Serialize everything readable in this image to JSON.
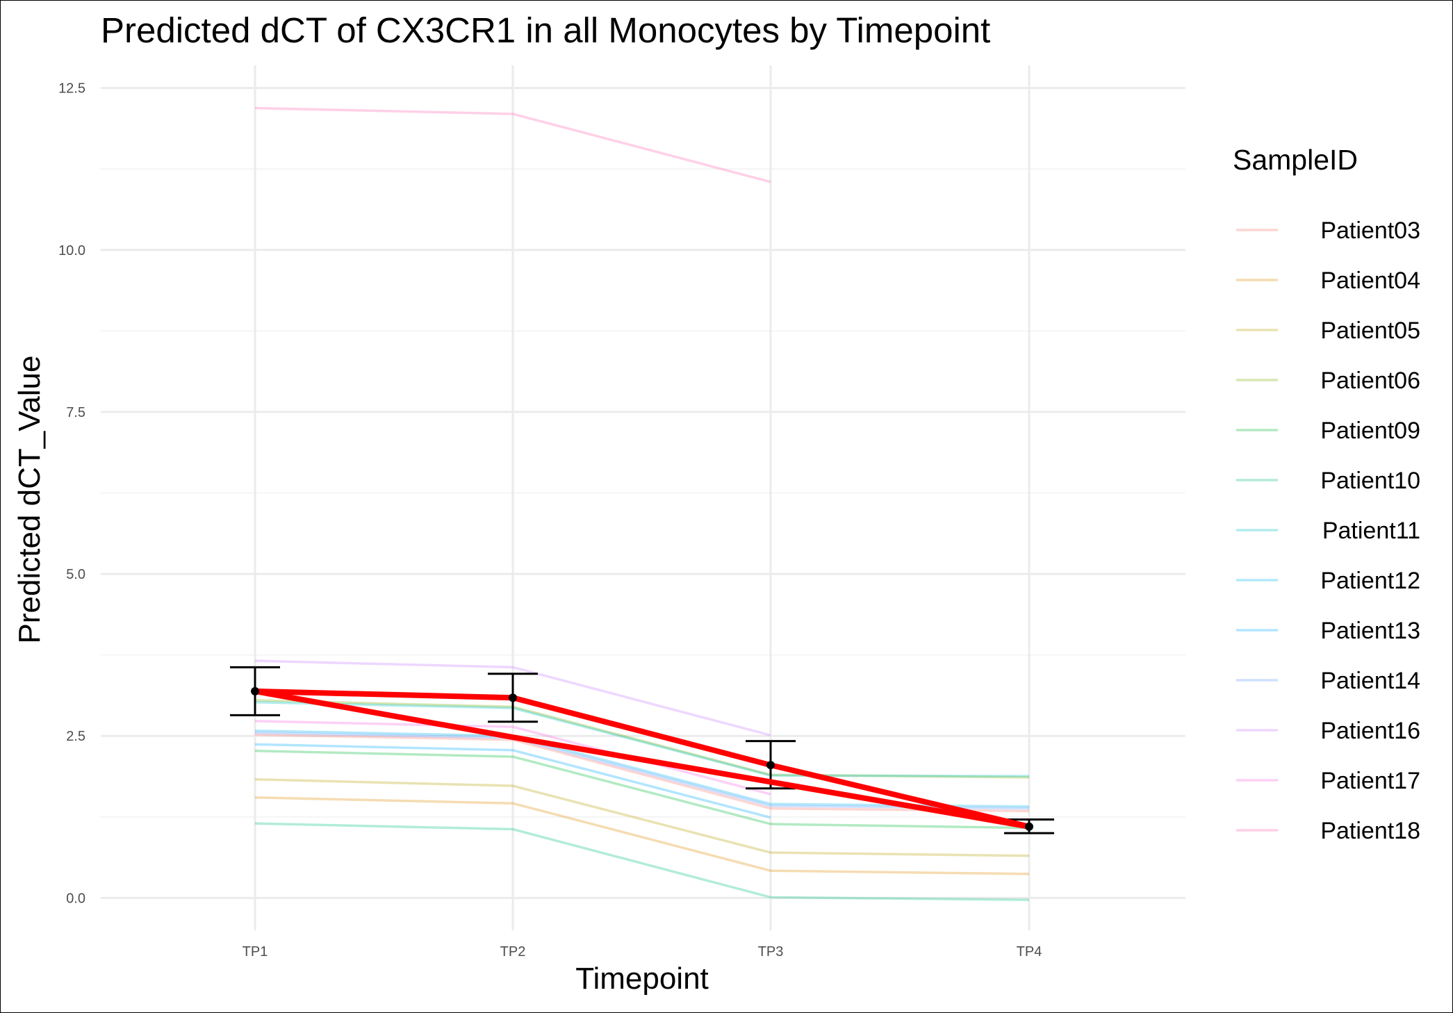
{
  "chart_data": {
    "type": "line",
    "title": "Predicted dCT of  CX3CR1 in  all  Monocytes by Timepoint",
    "xlabel": "Timepoint",
    "ylabel": "Predicted dCT_Value",
    "categories": [
      "TP1",
      "TP2",
      "TP3",
      "TP4"
    ],
    "ylim": [
      -0.5,
      12.85
    ],
    "yticks": [
      0.0,
      2.5,
      5.0,
      7.5,
      10.0,
      12.5
    ],
    "ytick_labels": [
      "0.0",
      "2.5",
      "5.0",
      "7.5",
      "10.0",
      "12.5"
    ],
    "grid": true,
    "legend_title": "SampleID",
    "legend_position": "right",
    "series": [
      {
        "name": "Patient03",
        "color": "#F8766D",
        "values": [
          2.52,
          2.44,
          1.38,
          1.34
        ]
      },
      {
        "name": "Patient04",
        "color": "#DE8C00",
        "values": [
          1.55,
          1.46,
          0.42,
          0.37
        ]
      },
      {
        "name": "Patient05",
        "color": "#B79F00",
        "values": [
          1.83,
          1.73,
          0.7,
          0.65
        ]
      },
      {
        "name": "Patient06",
        "color": "#7CAE00",
        "values": [
          3.05,
          2.95,
          1.9,
          1.86
        ]
      },
      {
        "name": "Patient09",
        "color": "#00BA38",
        "values": [
          2.27,
          2.18,
          1.14,
          1.08
        ]
      },
      {
        "name": "Patient10",
        "color": "#00BF7D",
        "values": [
          1.15,
          1.06,
          0.01,
          -0.03
        ]
      },
      {
        "name": "Patient11",
        "color": "#00BFC4",
        "values": [
          3.02,
          2.93,
          1.89,
          1.88
        ]
      },
      {
        "name": "Patient12",
        "color": "#00B4F0",
        "values": [
          2.58,
          2.5,
          1.45,
          1.41
        ]
      },
      {
        "name": "Patient13",
        "color": "#00A9FF",
        "values": [
          2.37,
          2.28,
          1.24,
          null
        ]
      },
      {
        "name": "Patient14",
        "color": "#619CFF",
        "values": [
          2.55,
          2.47,
          1.42,
          1.38
        ]
      },
      {
        "name": "Patient16",
        "color": "#C77CFF",
        "values": [
          3.66,
          3.56,
          2.51,
          null
        ]
      },
      {
        "name": "Patient17",
        "color": "#F564E3",
        "values": [
          2.73,
          2.64,
          1.6,
          null
        ]
      },
      {
        "name": "Patient18",
        "color": "#FF64B0",
        "values": [
          12.19,
          12.1,
          11.05,
          null
        ]
      }
    ],
    "mean": {
      "values": [
        3.19,
        3.09,
        2.05,
        1.1
      ],
      "error_low": [
        2.82,
        2.72,
        1.69,
        1.0
      ],
      "error_high": [
        3.56,
        3.46,
        2.42,
        1.21
      ],
      "color": "#000000"
    },
    "fit": {
      "color": "#FF0000",
      "paths": [
        [
          3.19,
          3.09,
          2.05,
          1.1
        ],
        [
          3.19,
          2.48,
          1.79,
          1.1
        ]
      ]
    }
  }
}
